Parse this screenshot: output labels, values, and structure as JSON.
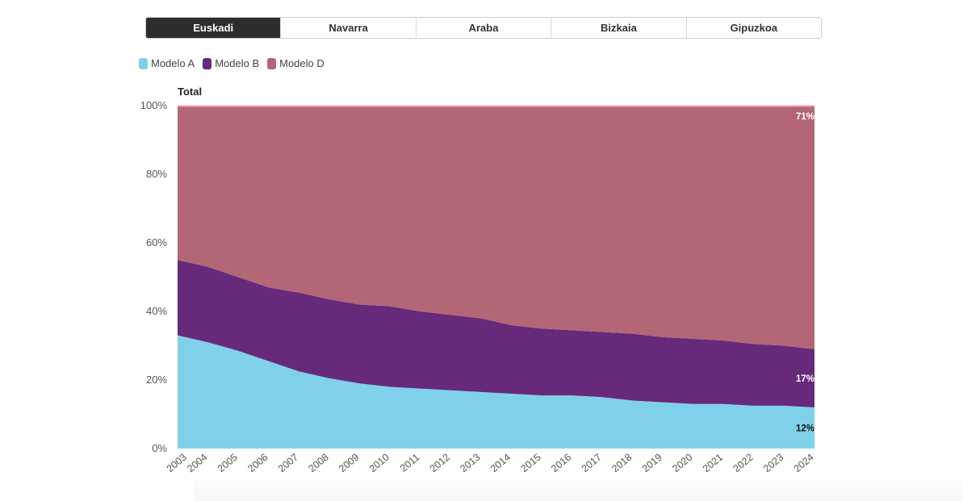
{
  "tabs": [
    {
      "label": "Euskadi",
      "active": true
    },
    {
      "label": "Navarra",
      "active": false
    },
    {
      "label": "Araba",
      "active": false
    },
    {
      "label": "Bizkaia",
      "active": false
    },
    {
      "label": "Gipuzkoa",
      "active": false
    }
  ],
  "legend": [
    {
      "label": "Modelo A",
      "color": "#7fd1ea"
    },
    {
      "label": "Modelo B",
      "color": "#672a7a"
    },
    {
      "label": "Modelo D",
      "color": "#b36676"
    }
  ],
  "chart_data": {
    "type": "area",
    "stacked": true,
    "title": "Total",
    "x": [
      "2003",
      "2004",
      "2005",
      "2006",
      "2007",
      "2008",
      "2009",
      "2010",
      "2011",
      "2012",
      "2013",
      "2014",
      "2015",
      "2016",
      "2017",
      "2018",
      "2019",
      "2020",
      "2021",
      "2022",
      "2023",
      "2024"
    ],
    "series": [
      {
        "name": "Modelo A",
        "color": "#7fd1ea",
        "values": [
          33,
          31,
          28.5,
          25.5,
          22.5,
          20.5,
          19,
          18,
          17.5,
          17,
          16.5,
          16,
          15.5,
          15.5,
          15,
          14,
          13.5,
          13,
          13,
          12.5,
          12.5,
          12
        ]
      },
      {
        "name": "Modelo B",
        "color": "#672a7a",
        "values": [
          22,
          22,
          21.5,
          21.5,
          23,
          23,
          23,
          23.5,
          22.5,
          22,
          21.5,
          20,
          19.5,
          19,
          19,
          19.5,
          19,
          19,
          18.5,
          18,
          17.5,
          17
        ]
      },
      {
        "name": "Modelo D",
        "color": "#b36676",
        "values": [
          45,
          47,
          50,
          53,
          54.5,
          56.5,
          58,
          58.5,
          60,
          61,
          62,
          64,
          65,
          65.5,
          66,
          66.5,
          67.5,
          68,
          68.5,
          69.5,
          70,
          71
        ]
      }
    ],
    "end_labels": [
      {
        "series": "Modelo D",
        "text": "71%"
      },
      {
        "series": "Modelo B",
        "text": "17%"
      },
      {
        "series": "Modelo A",
        "text": "12%"
      }
    ],
    "ylim": [
      0,
      100
    ],
    "yticks": [
      0,
      20,
      40,
      60,
      80,
      100
    ],
    "ytick_labels": [
      "0%",
      "20%",
      "40%",
      "60%",
      "80%",
      "100%"
    ],
    "grid": false,
    "legend_position": "top-left"
  }
}
